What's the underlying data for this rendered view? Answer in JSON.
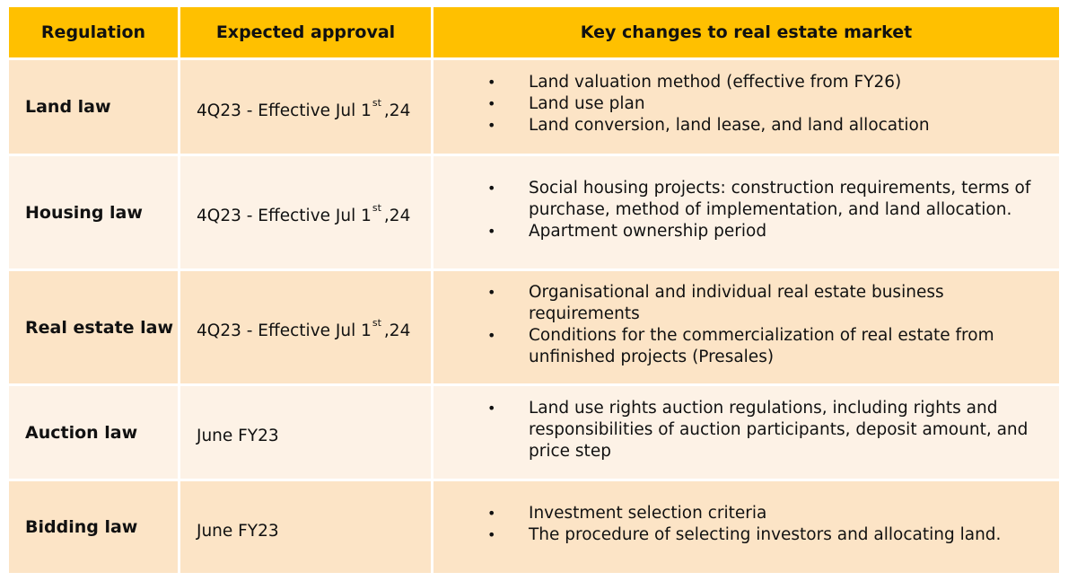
{
  "headers": {
    "regulation": "Regulation",
    "approval": "Expected approval",
    "changes": "Key changes to real estate market"
  },
  "rows": [
    {
      "regulation": "Land law",
      "approval_pre": "4Q23 - Effective Jul 1",
      "approval_sup": "st",
      "approval_post": ",24",
      "changes": [
        "Land valuation method (effective from FY26)",
        "Land use plan",
        "Land conversion, land lease, and land allocation"
      ]
    },
    {
      "regulation": "Housing law",
      "approval_pre": "4Q23 - Effective Jul 1",
      "approval_sup": "st",
      "approval_post": ",24",
      "changes": [
        "Social housing projects: construction requirements, terms of purchase, method of implementation, and land allocation.",
        "Apartment ownership period"
      ]
    },
    {
      "regulation": "Real estate law",
      "approval_pre": "4Q23 - Effective Jul 1",
      "approval_sup": "st",
      "approval_post": ",24",
      "changes": [
        "Organisational and individual real estate business requirements",
        "Conditions for the commercialization of real estate from unfinished projects (Presales)"
      ]
    },
    {
      "regulation": "Auction law",
      "approval_pre": "June FY23",
      "approval_sup": "",
      "approval_post": "",
      "changes": [
        "Land use rights auction regulations, including rights and responsibilities of auction participants, deposit amount, and price step"
      ]
    },
    {
      "regulation": "Bidding law",
      "approval_pre": "June FY23",
      "approval_sup": "",
      "approval_post": "",
      "changes": [
        "Investment selection criteria",
        "The procedure of selecting investors and allocating land."
      ]
    }
  ],
  "bullet_char": "•",
  "colors": {
    "header": "#FFC000",
    "row_odd": "#FCE4C6",
    "row_even": "#FDF2E6"
  }
}
